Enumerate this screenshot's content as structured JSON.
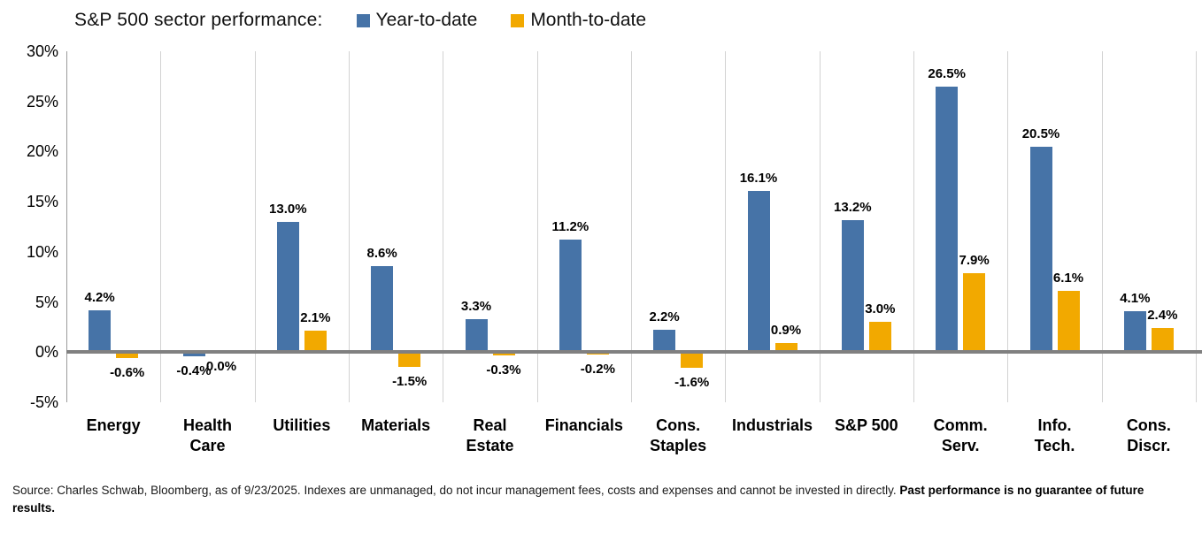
{
  "chart_data": {
    "type": "bar",
    "title": "S&P 500 sector performance:",
    "categories": [
      "Energy",
      "Health\nCare",
      "Utilities",
      "Materials",
      "Real\nEstate",
      "Financials",
      "Cons.\nStaples",
      "Industrials",
      "S&P 500",
      "Comm.\nServ.",
      "Info.\nTech.",
      "Cons.\nDiscr."
    ],
    "series": [
      {
        "name": "Year-to-date",
        "color": "#4673a7",
        "values": [
          4.2,
          -0.4,
          13.0,
          8.6,
          3.3,
          11.2,
          2.2,
          16.1,
          13.2,
          26.5,
          20.5,
          4.1
        ]
      },
      {
        "name": "Month-to-date",
        "color": "#f2a900",
        "values": [
          -0.6,
          0.0,
          2.1,
          -1.5,
          -0.3,
          -0.2,
          -1.6,
          0.9,
          3.0,
          7.9,
          6.1,
          2.4
        ]
      }
    ],
    "value_label_suffix": "%",
    "yticks": [
      30,
      25,
      20,
      15,
      10,
      5,
      0,
      -5
    ],
    "ytick_suffix": "%",
    "ylim": [
      -5,
      30
    ],
    "grid": "vertical-only",
    "legend_position": "top",
    "zero_line_color": "#808080",
    "gridline_color": "#d2d2d2"
  },
  "footer": {
    "source_text": "Source: Charles Schwab, Bloomberg, as of 9/23/2025.  Indexes are unmanaged, do not incur management fees, costs and expenses and cannot be invested in directly. ",
    "source_bold": "Past performance is no guarantee of future results."
  }
}
